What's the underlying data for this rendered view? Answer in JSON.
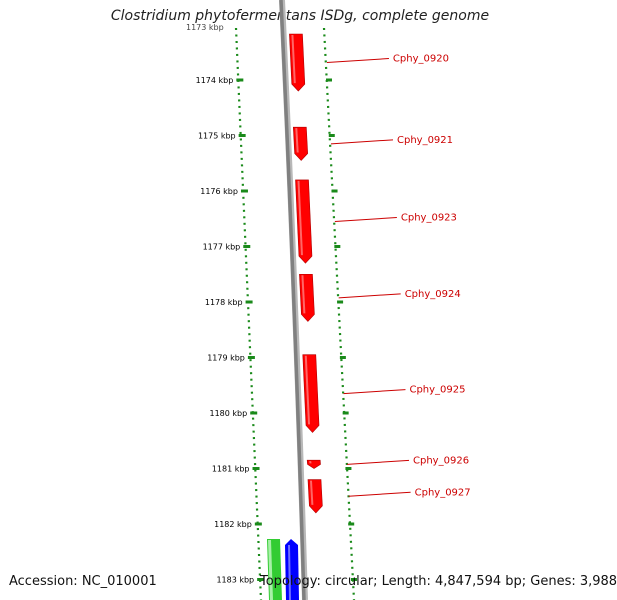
{
  "title": "Clostridium phytofermentans ISDg, complete genome",
  "footer": {
    "accession": "Accession: NC_010001",
    "summary": "Topology: circular; Length: 4,847,594 bp; Genes: 3,988"
  },
  "colors": {
    "background": "#ffffff",
    "backbone": "#808080",
    "ruler": "#1a8a1a",
    "gene_forward": "#ff0000",
    "gene_label": "#cc0000",
    "track_green": "#33cc33",
    "track_blue": "#0000ff"
  },
  "ruler": {
    "partial_top_label": "1173 kbp",
    "ticks": [
      {
        "label": "1174 kbp",
        "value": 1174
      },
      {
        "label": "1175 kbp",
        "value": 1175
      },
      {
        "label": "1176 kbp",
        "value": 1176
      },
      {
        "label": "1177 kbp",
        "value": 1177
      },
      {
        "label": "1178 kbp",
        "value": 1178
      },
      {
        "label": "1179 kbp",
        "value": 1179
      },
      {
        "label": "1180 kbp",
        "value": 1180
      },
      {
        "label": "1181 kbp",
        "value": 1181
      },
      {
        "label": "1182 kbp",
        "value": 1182
      },
      {
        "label": "1183 kbp",
        "value": 1183
      }
    ]
  },
  "genes": [
    {
      "name": "Cphy_0920",
      "start_kbp": 1172.9,
      "end_kbp": 1174.2,
      "strand": "+"
    },
    {
      "name": "Cphy_0921",
      "start_kbp": 1174.85,
      "end_kbp": 1175.45,
      "strand": "+"
    },
    {
      "name": "Cphy_0923",
      "start_kbp": 1175.8,
      "end_kbp": 1177.3,
      "strand": "+"
    },
    {
      "name": "Cphy_0924",
      "start_kbp": 1177.5,
      "end_kbp": 1178.35,
      "strand": "+"
    },
    {
      "name": "Cphy_0925",
      "start_kbp": 1178.95,
      "end_kbp": 1180.35,
      "strand": "+"
    },
    {
      "name": "Cphy_0926",
      "start_kbp": 1180.85,
      "end_kbp": 1181.0,
      "strand": "+"
    },
    {
      "name": "Cphy_0927",
      "start_kbp": 1181.2,
      "end_kbp": 1181.8,
      "strand": "+"
    }
  ]
}
